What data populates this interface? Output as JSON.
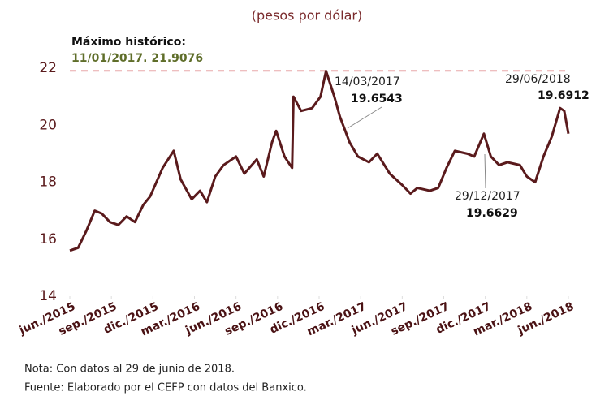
{
  "chart_data": {
    "type": "line",
    "subtitle": "(pesos por dólar)",
    "max_label": "Máximo histórico:",
    "max_detail": "11/01/2017. 21.9076",
    "max_line": 21.9076,
    "annotations": [
      {
        "date": "14/03/2017",
        "value": "19.6543"
      },
      {
        "date": "29/12/2017",
        "value": "19.6629"
      },
      {
        "date": "29/06/2018",
        "value": "19.6912"
      }
    ],
    "notes": [
      "Nota: Con datos al 29 de junio de 2018.",
      "Fuente: Elaborado por el CEFP con datos del Banxico."
    ],
    "color": "#5a1a1c",
    "x": [
      0,
      0.6,
      1.2,
      1.8,
      2.3,
      2.9,
      3.5,
      4.1,
      4.7,
      5.3,
      5.8,
      6.7,
      7.5,
      8,
      8.8,
      9.4,
      9.9,
      10.5,
      11.1,
      12,
      12.6,
      13.5,
      14,
      14.6,
      14.9,
      15.5,
      16.05,
      16.15,
      16.7,
      17.5,
      18.1,
      18.5,
      19.1,
      19.5,
      20.2,
      20.8,
      21.6,
      22.2,
      23.1,
      24,
      24.6,
      25.1,
      26,
      26.6,
      27.2,
      27.8,
      28.7,
      29.2,
      29.9,
      30.4,
      31,
      31.6,
      32.5,
      33,
      33.6,
      34.2,
      34.8,
      35.4,
      35.7,
      36
    ],
    "values": [
      15.6,
      15.7,
      16.3,
      17.0,
      16.9,
      16.6,
      16.5,
      16.8,
      16.6,
      17.2,
      17.5,
      18.5,
      19.1,
      18.1,
      17.4,
      17.7,
      17.3,
      18.2,
      18.6,
      18.9,
      18.3,
      18.8,
      18.2,
      19.4,
      19.8,
      18.9,
      18.5,
      21.0,
      20.5,
      20.6,
      21.0,
      21.9,
      21.0,
      20.3,
      19.4,
      18.9,
      18.7,
      19.0,
      18.3,
      17.9,
      17.6,
      17.8,
      17.7,
      17.8,
      18.5,
      19.1,
      19.0,
      18.9,
      19.7,
      18.9,
      18.6,
      18.7,
      18.6,
      18.2,
      18.0,
      18.9,
      19.6,
      20.6,
      20.5,
      19.7
    ],
    "xlim": [
      0,
      36
    ],
    "xticks": [
      {
        "value": 0,
        "label": "jun./2015"
      },
      {
        "value": 3,
        "label": "sep./2015"
      },
      {
        "value": 6,
        "label": "dic./2015"
      },
      {
        "value": 9,
        "label": "mar./2016"
      },
      {
        "value": 12,
        "label": "jun./2016"
      },
      {
        "value": 15,
        "label": "sep./2016"
      },
      {
        "value": 18,
        "label": "dic./2016"
      },
      {
        "value": 21,
        "label": "mar./2017"
      },
      {
        "value": 24,
        "label": "jun./2017"
      },
      {
        "value": 27,
        "label": "sep./2017"
      },
      {
        "value": 30,
        "label": "dic./2017"
      },
      {
        "value": 33,
        "label": "mar./2018"
      },
      {
        "value": 36,
        "label": "jun./2018"
      }
    ],
    "ylim": [
      14,
      22
    ],
    "yticks": [
      14,
      16,
      18,
      20,
      22
    ]
  }
}
